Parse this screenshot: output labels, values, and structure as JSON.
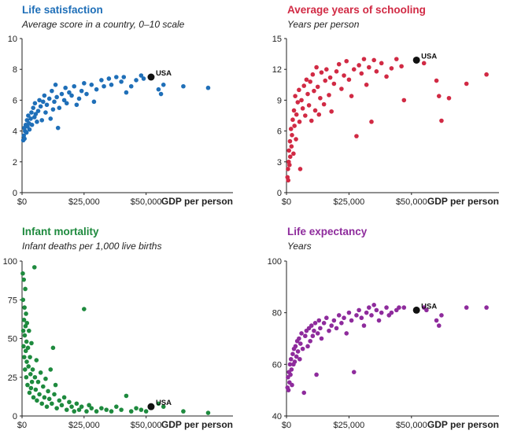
{
  "chart_data": [
    {
      "type": "scatter",
      "title": "Life satisfaction",
      "subtitle": "Average score in a country, 0–10 scale",
      "xlabel": "GDP per person",
      "xlim": [
        0,
        85000
      ],
      "ylim": [
        0,
        10
      ],
      "xticks": [
        0,
        25000,
        50000
      ],
      "xtick_labels": [
        "$0",
        "$25,000",
        "$50,000"
      ],
      "yticks": [
        0,
        2,
        4,
        6,
        8,
        10
      ],
      "ytick_labels": [
        "0",
        "2",
        "4",
        "6",
        "8",
        "10"
      ],
      "color": "#1f6fb8",
      "highlight": {
        "label": "USA",
        "x": 52000,
        "y": 7.5
      },
      "points": [
        [
          500,
          3.4
        ],
        [
          700,
          3.7
        ],
        [
          900,
          4.2
        ],
        [
          1000,
          3.5
        ],
        [
          1200,
          4.0
        ],
        [
          1500,
          4.4
        ],
        [
          1800,
          3.9
        ],
        [
          2000,
          4.7
        ],
        [
          2200,
          4.3
        ],
        [
          2500,
          5.0
        ],
        [
          2800,
          4.5
        ],
        [
          3000,
          4.1
        ],
        [
          3500,
          4.8
        ],
        [
          3800,
          5.2
        ],
        [
          4000,
          4.4
        ],
        [
          4500,
          5.5
        ],
        [
          5000,
          4.9
        ],
        [
          5200,
          5.8
        ],
        [
          5500,
          5.1
        ],
        [
          6000,
          4.6
        ],
        [
          6500,
          5.3
        ],
        [
          7000,
          6.0
        ],
        [
          7500,
          5.6
        ],
        [
          8000,
          4.7
        ],
        [
          8500,
          5.9
        ],
        [
          9000,
          6.3
        ],
        [
          9500,
          5.2
        ],
        [
          10000,
          5.7
        ],
        [
          11000,
          6.1
        ],
        [
          11500,
          4.8
        ],
        [
          12000,
          6.6
        ],
        [
          12500,
          5.4
        ],
        [
          13000,
          5.9
        ],
        [
          13500,
          7.0
        ],
        [
          14000,
          6.2
        ],
        [
          14500,
          4.2
        ],
        [
          15000,
          5.5
        ],
        [
          16000,
          6.4
        ],
        [
          17000,
          6.0
        ],
        [
          17500,
          6.8
        ],
        [
          18000,
          5.8
        ],
        [
          19000,
          6.5
        ],
        [
          20000,
          6.3
        ],
        [
          21000,
          6.9
        ],
        [
          22000,
          5.7
        ],
        [
          23000,
          6.1
        ],
        [
          24000,
          6.6
        ],
        [
          25000,
          7.1
        ],
        [
          26000,
          6.4
        ],
        [
          28000,
          7.0
        ],
        [
          29000,
          5.9
        ],
        [
          30000,
          6.7
        ],
        [
          32000,
          7.3
        ],
        [
          33000,
          6.9
        ],
        [
          35000,
          7.4
        ],
        [
          36000,
          7.0
        ],
        [
          38000,
          7.5
        ],
        [
          40000,
          7.2
        ],
        [
          41000,
          7.5
        ],
        [
          42000,
          6.5
        ],
        [
          44000,
          6.9
        ],
        [
          46000,
          7.3
        ],
        [
          48000,
          7.6
        ],
        [
          49000,
          7.4
        ],
        [
          55000,
          6.7
        ],
        [
          56000,
          6.4
        ],
        [
          57000,
          7.0
        ],
        [
          65000,
          6.9
        ],
        [
          75000,
          6.8
        ]
      ]
    },
    {
      "type": "scatter",
      "title": "Average years of schooling",
      "subtitle": "Years per person",
      "xlabel": "GDP per person",
      "xlim": [
        0,
        85000
      ],
      "ylim": [
        0,
        15
      ],
      "xticks": [
        0,
        25000,
        50000
      ],
      "xtick_labels": [
        "$0",
        "$25,000",
        "$50,000"
      ],
      "yticks": [
        0,
        3,
        6,
        9,
        12,
        15
      ],
      "ytick_labels": [
        "0",
        "3",
        "6",
        "9",
        "12",
        "15"
      ],
      "color": "#d12a44",
      "highlight": {
        "label": "USA",
        "x": 52000,
        "y": 12.9
      },
      "points": [
        [
          400,
          1.5
        ],
        [
          600,
          2.3
        ],
        [
          700,
          1.2
        ],
        [
          900,
          3.0
        ],
        [
          1000,
          4.1
        ],
        [
          1200,
          2.7
        ],
        [
          1400,
          5.0
        ],
        [
          1500,
          3.5
        ],
        [
          1800,
          6.2
        ],
        [
          2000,
          4.5
        ],
        [
          2200,
          5.6
        ],
        [
          2500,
          7.1
        ],
        [
          2800,
          3.8
        ],
        [
          3000,
          8.0
        ],
        [
          3200,
          6.5
        ],
        [
          3500,
          9.4
        ],
        [
          3800,
          5.2
        ],
        [
          4000,
          7.6
        ],
        [
          4500,
          8.8
        ],
        [
          5000,
          10.0
        ],
        [
          5200,
          6.9
        ],
        [
          5500,
          2.3
        ],
        [
          6000,
          9.0
        ],
        [
          6500,
          8.2
        ],
        [
          7000,
          10.4
        ],
        [
          7500,
          7.5
        ],
        [
          8000,
          11.0
        ],
        [
          8500,
          9.6
        ],
        [
          9000,
          8.5
        ],
        [
          9500,
          10.8
        ],
        [
          10000,
          7.0
        ],
        [
          10500,
          11.5
        ],
        [
          11000,
          9.9
        ],
        [
          11500,
          8.0
        ],
        [
          12000,
          12.2
        ],
        [
          12500,
          10.3
        ],
        [
          13000,
          7.6
        ],
        [
          13500,
          9.2
        ],
        [
          14000,
          11.7
        ],
        [
          15000,
          8.6
        ],
        [
          15500,
          10.9
        ],
        [
          16000,
          12.0
        ],
        [
          17000,
          9.5
        ],
        [
          17500,
          11.2
        ],
        [
          18000,
          7.9
        ],
        [
          19000,
          10.6
        ],
        [
          20000,
          11.8
        ],
        [
          21000,
          12.5
        ],
        [
          22000,
          10.1
        ],
        [
          23000,
          11.4
        ],
        [
          24000,
          12.8
        ],
        [
          25000,
          11.0
        ],
        [
          26000,
          9.4
        ],
        [
          27000,
          12.0
        ],
        [
          28000,
          5.5
        ],
        [
          29000,
          12.4
        ],
        [
          30000,
          11.6
        ],
        [
          31000,
          13.0
        ],
        [
          32000,
          10.5
        ],
        [
          33000,
          12.2
        ],
        [
          34000,
          6.9
        ],
        [
          35000,
          12.9
        ],
        [
          36000,
          11.8
        ],
        [
          38000,
          12.6
        ],
        [
          40000,
          11.3
        ],
        [
          42000,
          12.1
        ],
        [
          44000,
          13.0
        ],
        [
          46000,
          12.3
        ],
        [
          47000,
          9.0
        ],
        [
          55000,
          12.6
        ],
        [
          60000,
          10.9
        ],
        [
          61000,
          9.4
        ],
        [
          62000,
          7.0
        ],
        [
          65000,
          9.2
        ],
        [
          72000,
          10.6
        ],
        [
          80000,
          11.5
        ]
      ]
    },
    {
      "type": "scatter",
      "title": "Infant mortality",
      "subtitle": "Infant deaths per 1,000 live births",
      "xlabel": "GDP per person",
      "xlim": [
        0,
        85000
      ],
      "ylim": [
        0,
        100
      ],
      "xticks": [
        0,
        25000,
        50000
      ],
      "xtick_labels": [
        "$0",
        "$25,000",
        "$50,000"
      ],
      "yticks": [
        0,
        25,
        50,
        75,
        100
      ],
      "ytick_labels": [
        "0",
        "25",
        "50",
        "75",
        "100"
      ],
      "color": "#1e8a3e",
      "highlight": {
        "label": "USA",
        "x": 52000,
        "y": 6
      },
      "points": [
        [
          300,
          92
        ],
        [
          400,
          75
        ],
        [
          500,
          55
        ],
        [
          600,
          45
        ],
        [
          700,
          88
        ],
        [
          800,
          62
        ],
        [
          900,
          38
        ],
        [
          1000,
          70
        ],
        [
          1100,
          52
        ],
        [
          1200,
          30
        ],
        [
          1300,
          82
        ],
        [
          1400,
          58
        ],
        [
          1500,
          42
        ],
        [
          1600,
          66
        ],
        [
          1700,
          25
        ],
        [
          1800,
          48
        ],
        [
          1900,
          35
        ],
        [
          2000,
          60
        ],
        [
          2200,
          20
        ],
        [
          2400,
          44
        ],
        [
          2600,
          32
        ],
        [
          2800,
          55
        ],
        [
          3000,
          15
        ],
        [
          3200,
          38
        ],
        [
          3400,
          27
        ],
        [
          3600,
          18
        ],
        [
          3800,
          47
        ],
        [
          4000,
          22
        ],
        [
          4300,
          30
        ],
        [
          4600,
          12
        ],
        [
          5000,
          96
        ],
        [
          5200,
          25
        ],
        [
          5500,
          17
        ],
        [
          5800,
          36
        ],
        [
          6000,
          10
        ],
        [
          6500,
          22
        ],
        [
          7000,
          14
        ],
        [
          7500,
          28
        ],
        [
          8000,
          8
        ],
        [
          8500,
          19
        ],
        [
          9000,
          12
        ],
        [
          9500,
          24
        ],
        [
          10000,
          6
        ],
        [
          10500,
          16
        ],
        [
          11000,
          11
        ],
        [
          11500,
          30
        ],
        [
          12000,
          8
        ],
        [
          12500,
          44
        ],
        [
          13000,
          14
        ],
        [
          13500,
          20
        ],
        [
          14000,
          5
        ],
        [
          15000,
          10
        ],
        [
          16000,
          7
        ],
        [
          17000,
          12
        ],
        [
          18000,
          4
        ],
        [
          19000,
          9
        ],
        [
          20000,
          6
        ],
        [
          21000,
          3
        ],
        [
          22000,
          8
        ],
        [
          23000,
          4
        ],
        [
          24000,
          6
        ],
        [
          25000,
          69
        ],
        [
          26000,
          3
        ],
        [
          27000,
          7
        ],
        [
          28000,
          5
        ],
        [
          30000,
          3
        ],
        [
          32000,
          5
        ],
        [
          34000,
          4
        ],
        [
          36000,
          3
        ],
        [
          38000,
          6
        ],
        [
          40000,
          4
        ],
        [
          42000,
          13
        ],
        [
          44000,
          3
        ],
        [
          46000,
          5
        ],
        [
          48000,
          4
        ],
        [
          50000,
          3
        ],
        [
          55000,
          8
        ],
        [
          57000,
          6
        ],
        [
          65000,
          3
        ],
        [
          75000,
          2
        ]
      ]
    },
    {
      "type": "scatter",
      "title": "Life expectancy",
      "subtitle": "Years",
      "xlabel": "GDP per person",
      "xlim": [
        0,
        85000
      ],
      "ylim": [
        40,
        100
      ],
      "xticks": [
        0,
        25000,
        50000
      ],
      "xtick_labels": [
        "$0",
        "$25,000",
        "$50,000"
      ],
      "yticks": [
        40,
        60,
        80,
        100
      ],
      "ytick_labels": [
        "40",
        "60",
        "80",
        "100"
      ],
      "color": "#8e2b9c",
      "highlight": {
        "label": "USA",
        "x": 52000,
        "y": 81
      },
      "points": [
        [
          400,
          51
        ],
        [
          600,
          55
        ],
        [
          800,
          50
        ],
        [
          1000,
          57
        ],
        [
          1200,
          53
        ],
        [
          1400,
          60
        ],
        [
          1600,
          56
        ],
        [
          1800,
          62
        ],
        [
          2000,
          58
        ],
        [
          2200,
          52
        ],
        [
          2500,
          64
        ],
        [
          2800,
          60
        ],
        [
          3000,
          66
        ],
        [
          3300,
          61
        ],
        [
          3600,
          67
        ],
        [
          4000,
          63
        ],
        [
          4300,
          69
        ],
        [
          4600,
          65
        ],
        [
          5000,
          70
        ],
        [
          5300,
          62
        ],
        [
          5600,
          68
        ],
        [
          6000,
          72
        ],
        [
          6500,
          66
        ],
        [
          7000,
          49
        ],
        [
          7500,
          71
        ],
        [
          8000,
          73
        ],
        [
          8500,
          67
        ],
        [
          9000,
          74
        ],
        [
          9500,
          69
        ],
        [
          10000,
          75
        ],
        [
          10500,
          71
        ],
        [
          11000,
          73
        ],
        [
          11500,
          76
        ],
        [
          12000,
          56
        ],
        [
          12500,
          72
        ],
        [
          13000,
          77
        ],
        [
          13500,
          74
        ],
        [
          14000,
          70
        ],
        [
          15000,
          76
        ],
        [
          16000,
          78
        ],
        [
          17000,
          73
        ],
        [
          18000,
          75
        ],
        [
          19000,
          77
        ],
        [
          20000,
          74
        ],
        [
          21000,
          79
        ],
        [
          22000,
          76
        ],
        [
          23000,
          78
        ],
        [
          24000,
          72
        ],
        [
          25000,
          80
        ],
        [
          26000,
          77
        ],
        [
          27000,
          57
        ],
        [
          28000,
          79
        ],
        [
          29000,
          81
        ],
        [
          30000,
          78
        ],
        [
          31000,
          75
        ],
        [
          32000,
          80
        ],
        [
          33000,
          82
        ],
        [
          34000,
          79
        ],
        [
          35000,
          83
        ],
        [
          36000,
          81
        ],
        [
          37000,
          77
        ],
        [
          38000,
          80
        ],
        [
          40000,
          82
        ],
        [
          41000,
          79
        ],
        [
          42000,
          80
        ],
        [
          44000,
          81
        ],
        [
          45000,
          82
        ],
        [
          47000,
          82
        ],
        [
          55000,
          82
        ],
        [
          56000,
          81
        ],
        [
          60000,
          77
        ],
        [
          61000,
          75
        ],
        [
          62000,
          79
        ],
        [
          72000,
          82
        ],
        [
          80000,
          82
        ]
      ]
    }
  ]
}
